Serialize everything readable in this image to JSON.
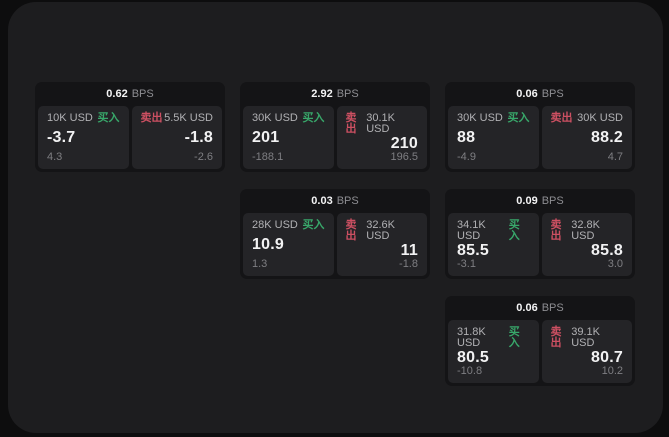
{
  "labels": {
    "bps": "BPS",
    "buy": "买入",
    "sell": "卖出"
  },
  "colors": {
    "buy_green": "#38a76a",
    "sell_red": "#cd5062",
    "panel_bg": "#1d1d1f",
    "card_bg": "#141416",
    "subpanel_bg": "#242427",
    "outer_bg": "#0d0d0e"
  },
  "cards": [
    {
      "row": 0,
      "col": 0,
      "bps": "0.62",
      "buy": {
        "size": "10K USD",
        "value": "-3.7",
        "delta": "4.3"
      },
      "sell": {
        "size": "5.5K USD",
        "value": "-1.8",
        "delta": "-2.6"
      }
    },
    {
      "row": 0,
      "col": 1,
      "bps": "2.92",
      "buy": {
        "size": "30K USD",
        "value": "201",
        "delta": "-188.1"
      },
      "sell": {
        "size": "30.1K USD",
        "value": "210",
        "delta": "196.5"
      }
    },
    {
      "row": 0,
      "col": 2,
      "bps": "0.06",
      "buy": {
        "size": "30K USD",
        "value": "88",
        "delta": "-4.9"
      },
      "sell": {
        "size": "30K USD",
        "value": "88.2",
        "delta": "4.7"
      }
    },
    {
      "row": 1,
      "col": 1,
      "bps": "0.03",
      "buy": {
        "size": "28K USD",
        "value": "10.9",
        "delta": "1.3"
      },
      "sell": {
        "size": "32.6K USD",
        "value": "11",
        "delta": "-1.8"
      }
    },
    {
      "row": 1,
      "col": 2,
      "bps": "0.09",
      "buy": {
        "size": "34.1K USD",
        "value": "85.5",
        "delta": "-3.1"
      },
      "sell": {
        "size": "32.8K USD",
        "value": "85.8",
        "delta": "3.0"
      }
    },
    {
      "row": 2,
      "col": 2,
      "bps": "0.06",
      "buy": {
        "size": "31.8K USD",
        "value": "80.5",
        "delta": "-10.8"
      },
      "sell": {
        "size": "39.1K USD",
        "value": "80.7",
        "delta": "10.2"
      }
    }
  ]
}
